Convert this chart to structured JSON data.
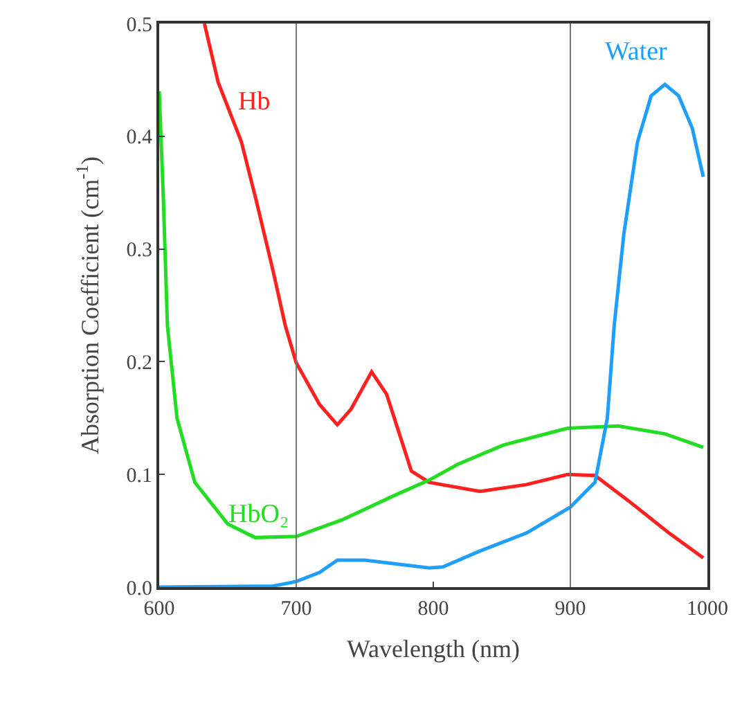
{
  "chart_data": {
    "type": "line",
    "xlabel": "Wavelength (nm)",
    "ylabel": "Absorption Coefficient (cm$^{-1}$)",
    "xlim": [
      600,
      1000
    ],
    "xticks": [
      600,
      700,
      800,
      900,
      1000
    ],
    "ylim": [
      0,
      0.5
    ],
    "yticks": [
      {
        "value": 0,
        "label": "0.0"
      },
      0.1,
      0.2,
      0.3,
      0.4,
      0.5
    ],
    "legend": false,
    "marker": "none",
    "line_style": "solid",
    "ref_lines": [
      {
        "axis": "x",
        "value": 700,
        "color": "#777777"
      },
      {
        "axis": "x",
        "value": 900,
        "color": "#777777"
      }
    ],
    "series": [
      {
        "name": "Hb",
        "color": "#ff2020",
        "x": [
          633,
          643,
          660,
          671,
          683,
          692,
          700,
          717,
          730,
          740,
          755,
          766,
          784,
          797,
          834,
          868,
          898,
          918,
          942,
          972,
          997
        ],
        "values": [
          0.5,
          0.448,
          0.395,
          0.342,
          0.281,
          0.232,
          0.199,
          0.162,
          0.144,
          0.158,
          0.191,
          0.171,
          0.103,
          0.093,
          0.085,
          0.091,
          0.1,
          0.099,
          0.077,
          0.048,
          0.026
        ]
      },
      {
        "name": "HbO₂",
        "color": "#22dd22",
        "x": [
          600,
          603,
          606,
          613,
          626,
          650,
          670,
          700,
          734,
          771,
          797,
          818,
          851,
          898,
          935,
          969,
          997
        ],
        "values": [
          0.44,
          0.346,
          0.232,
          0.15,
          0.093,
          0.056,
          0.044,
          0.045,
          0.06,
          0.081,
          0.095,
          0.109,
          0.126,
          0.141,
          0.143,
          0.136,
          0.124
        ]
      },
      {
        "name": "Water",
        "color": "#1e9fff",
        "x": [
          600,
          683,
          700,
          717,
          730,
          750,
          797,
          807,
          834,
          868,
          900,
          918,
          927,
          932,
          939,
          949,
          959,
          969,
          979,
          989,
          997
        ],
        "values": [
          0,
          0.001,
          0.005,
          0.013,
          0.024,
          0.024,
          0.017,
          0.018,
          0.032,
          0.048,
          0.071,
          0.093,
          0.15,
          0.232,
          0.313,
          0.395,
          0.436,
          0.446,
          0.436,
          0.407,
          0.364
        ]
      }
    ]
  }
}
